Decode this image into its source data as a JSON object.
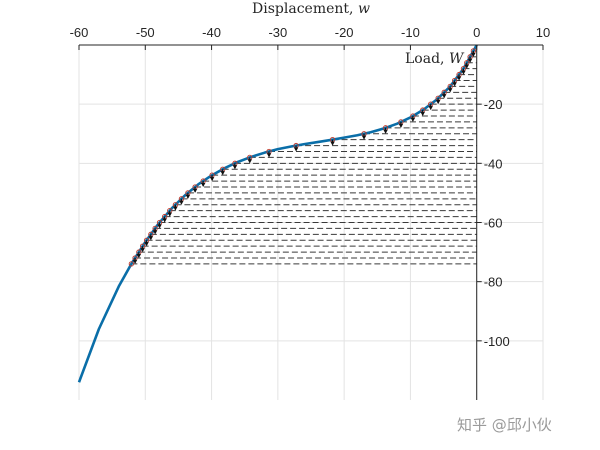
{
  "chart_data": {
    "type": "line",
    "title": "",
    "xlabel": "Displacement, w",
    "xlabel_text": "Displacement, ",
    "xlabel_symbol": "w",
    "ylabel": "Load, W",
    "ylabel_text": "Load, ",
    "ylabel_symbol": "W",
    "xlim": [
      -60,
      10
    ],
    "ylim": [
      -120,
      0
    ],
    "xticks": [
      -60,
      -50,
      -40,
      -30,
      -20,
      -10,
      0,
      10
    ],
    "yticks": [
      -20,
      -40,
      -60,
      -80,
      -100
    ],
    "xaxis_position": "top",
    "yaxis_position": "x=0",
    "grid": true,
    "series": [
      {
        "role": "equilibrium-path",
        "color": "#0a6ea8",
        "x": [
          -60,
          -57,
          -54,
          -52,
          -50,
          -48,
          -46,
          -44,
          -42,
          -40,
          -38,
          -36,
          -34,
          -32,
          -30,
          -28,
          -26,
          -24,
          -22,
          -20,
          -18,
          -16,
          -14,
          -12,
          -10,
          -8,
          -6,
          -4,
          -2,
          0
        ],
        "y": [
          -114,
          -96,
          -81.6,
          -73.6,
          -66.6,
          -60.4,
          -55.2,
          -50.8,
          -47.1,
          -44.1,
          -41.6,
          -39.5,
          -37.8,
          -36.4,
          -35.2,
          -34.3,
          -33.5,
          -32.8,
          -32.1,
          -31.3,
          -30.5,
          -29.5,
          -28.2,
          -26.6,
          -24.5,
          -21.8,
          -18.4,
          -14,
          -8,
          0
        ]
      }
    ],
    "load_steps": {
      "role": "load-increment-markers",
      "line_color": "#3a3a3a",
      "marker_color": "#c0392b",
      "y": [
        -2,
        -4,
        -6,
        -8,
        -10,
        -12,
        -14,
        -16,
        -18,
        -20,
        -22,
        -24,
        -26,
        -28,
        -30,
        -32,
        -34,
        -36,
        -38,
        -40,
        -42,
        -44,
        -46,
        -48,
        -50,
        -52,
        -54,
        -56,
        -58,
        -60,
        -62,
        -64,
        -66,
        -68,
        -70,
        -72,
        -74
      ]
    }
  },
  "watermark": "知乎 @邱小伙"
}
